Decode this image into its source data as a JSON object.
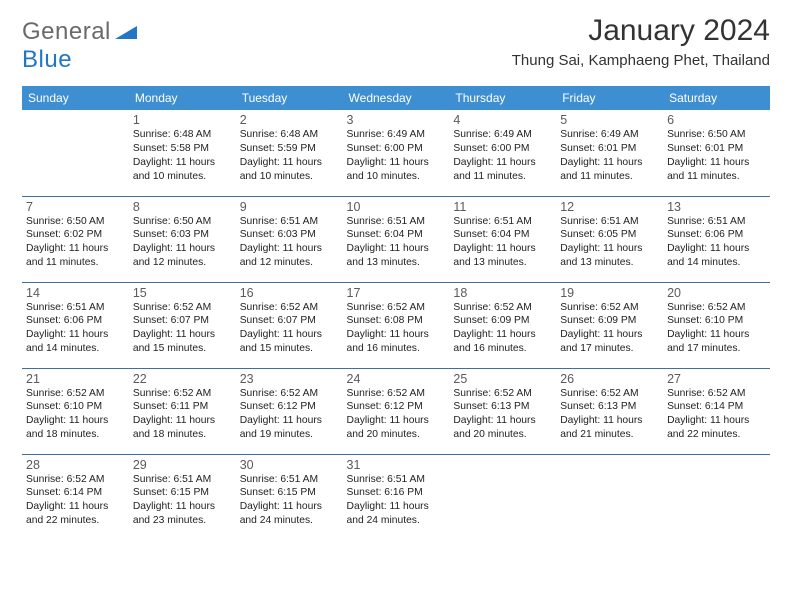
{
  "logo": {
    "textGray": "General",
    "textBlue": "Blue"
  },
  "title": "January 2024",
  "location": "Thung Sai, Kamphaeng Phet, Thailand",
  "colors": {
    "headerBg": "#3d8fd1",
    "headerText": "#ffffff",
    "border": "#3d6fa0",
    "logoGray": "#6a6a6a",
    "logoBlue": "#2176c7"
  },
  "dayHeaders": [
    "Sunday",
    "Monday",
    "Tuesday",
    "Wednesday",
    "Thursday",
    "Friday",
    "Saturday"
  ],
  "weeks": [
    [
      null,
      {
        "n": "1",
        "sr": "6:48 AM",
        "ss": "5:58 PM",
        "dl": "11 hours and 10 minutes."
      },
      {
        "n": "2",
        "sr": "6:48 AM",
        "ss": "5:59 PM",
        "dl": "11 hours and 10 minutes."
      },
      {
        "n": "3",
        "sr": "6:49 AM",
        "ss": "6:00 PM",
        "dl": "11 hours and 10 minutes."
      },
      {
        "n": "4",
        "sr": "6:49 AM",
        "ss": "6:00 PM",
        "dl": "11 hours and 11 minutes."
      },
      {
        "n": "5",
        "sr": "6:49 AM",
        "ss": "6:01 PM",
        "dl": "11 hours and 11 minutes."
      },
      {
        "n": "6",
        "sr": "6:50 AM",
        "ss": "6:01 PM",
        "dl": "11 hours and 11 minutes."
      }
    ],
    [
      {
        "n": "7",
        "sr": "6:50 AM",
        "ss": "6:02 PM",
        "dl": "11 hours and 11 minutes."
      },
      {
        "n": "8",
        "sr": "6:50 AM",
        "ss": "6:03 PM",
        "dl": "11 hours and 12 minutes."
      },
      {
        "n": "9",
        "sr": "6:51 AM",
        "ss": "6:03 PM",
        "dl": "11 hours and 12 minutes."
      },
      {
        "n": "10",
        "sr": "6:51 AM",
        "ss": "6:04 PM",
        "dl": "11 hours and 13 minutes."
      },
      {
        "n": "11",
        "sr": "6:51 AM",
        "ss": "6:04 PM",
        "dl": "11 hours and 13 minutes."
      },
      {
        "n": "12",
        "sr": "6:51 AM",
        "ss": "6:05 PM",
        "dl": "11 hours and 13 minutes."
      },
      {
        "n": "13",
        "sr": "6:51 AM",
        "ss": "6:06 PM",
        "dl": "11 hours and 14 minutes."
      }
    ],
    [
      {
        "n": "14",
        "sr": "6:51 AM",
        "ss": "6:06 PM",
        "dl": "11 hours and 14 minutes."
      },
      {
        "n": "15",
        "sr": "6:52 AM",
        "ss": "6:07 PM",
        "dl": "11 hours and 15 minutes."
      },
      {
        "n": "16",
        "sr": "6:52 AM",
        "ss": "6:07 PM",
        "dl": "11 hours and 15 minutes."
      },
      {
        "n": "17",
        "sr": "6:52 AM",
        "ss": "6:08 PM",
        "dl": "11 hours and 16 minutes."
      },
      {
        "n": "18",
        "sr": "6:52 AM",
        "ss": "6:09 PM",
        "dl": "11 hours and 16 minutes."
      },
      {
        "n": "19",
        "sr": "6:52 AM",
        "ss": "6:09 PM",
        "dl": "11 hours and 17 minutes."
      },
      {
        "n": "20",
        "sr": "6:52 AM",
        "ss": "6:10 PM",
        "dl": "11 hours and 17 minutes."
      }
    ],
    [
      {
        "n": "21",
        "sr": "6:52 AM",
        "ss": "6:10 PM",
        "dl": "11 hours and 18 minutes."
      },
      {
        "n": "22",
        "sr": "6:52 AM",
        "ss": "6:11 PM",
        "dl": "11 hours and 18 minutes."
      },
      {
        "n": "23",
        "sr": "6:52 AM",
        "ss": "6:12 PM",
        "dl": "11 hours and 19 minutes."
      },
      {
        "n": "24",
        "sr": "6:52 AM",
        "ss": "6:12 PM",
        "dl": "11 hours and 20 minutes."
      },
      {
        "n": "25",
        "sr": "6:52 AM",
        "ss": "6:13 PM",
        "dl": "11 hours and 20 minutes."
      },
      {
        "n": "26",
        "sr": "6:52 AM",
        "ss": "6:13 PM",
        "dl": "11 hours and 21 minutes."
      },
      {
        "n": "27",
        "sr": "6:52 AM",
        "ss": "6:14 PM",
        "dl": "11 hours and 22 minutes."
      }
    ],
    [
      {
        "n": "28",
        "sr": "6:52 AM",
        "ss": "6:14 PM",
        "dl": "11 hours and 22 minutes."
      },
      {
        "n": "29",
        "sr": "6:51 AM",
        "ss": "6:15 PM",
        "dl": "11 hours and 23 minutes."
      },
      {
        "n": "30",
        "sr": "6:51 AM",
        "ss": "6:15 PM",
        "dl": "11 hours and 24 minutes."
      },
      {
        "n": "31",
        "sr": "6:51 AM",
        "ss": "6:16 PM",
        "dl": "11 hours and 24 minutes."
      },
      null,
      null,
      null
    ]
  ],
  "labels": {
    "sunrise": "Sunrise:",
    "sunset": "Sunset:",
    "daylight": "Daylight:"
  }
}
